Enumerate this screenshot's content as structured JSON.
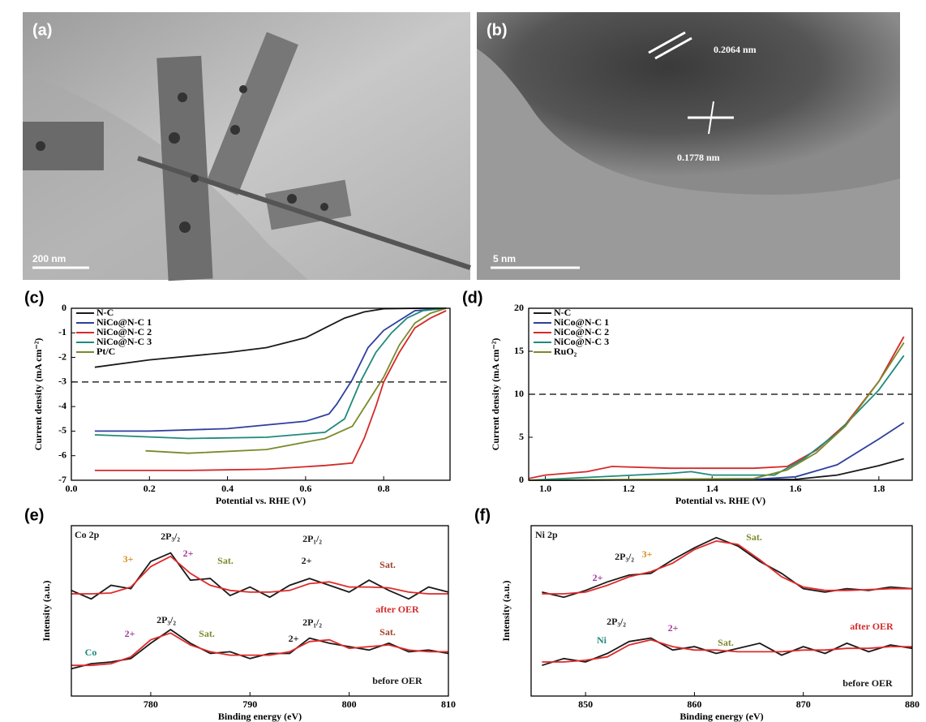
{
  "images": [
    {
      "label": "(a)",
      "scale_bar": "200 nm"
    },
    {
      "label": "(b)",
      "scale_bar": "5 nm",
      "annotations": [
        "0.2064 nm",
        "0.1778 nm"
      ]
    }
  ],
  "chart_data": [
    {
      "type": "line",
      "panel_label": "(c)",
      "x_label": "Potential vs. RHE (V)",
      "y_label": "Current density (mA cm⁻²)",
      "xlim": [
        0,
        0.97
      ],
      "ylim": [
        -7,
        0
      ],
      "xticks": [
        {
          "value": 0,
          "label": "0.0"
        },
        0.2,
        0.4,
        0.6,
        0.8
      ],
      "yticks": [
        -7,
        -6,
        -5,
        -4,
        -3,
        -2,
        -1,
        0
      ],
      "legend": "upper left",
      "ref_line": {
        "y": -3,
        "style": "dashed"
      },
      "series": [
        {
          "name": "N-C",
          "color": "#1a1a1a",
          "x": [
            0.06,
            0.2,
            0.4,
            0.5,
            0.6,
            0.65,
            0.7,
            0.75,
            0.8,
            0.9,
            0.96
          ],
          "values": [
            -2.4,
            -2.1,
            -1.8,
            -1.6,
            -1.2,
            -0.8,
            -0.4,
            -0.15,
            -0.02,
            0,
            0
          ]
        },
        {
          "name": "NiCo@N-C 1",
          "color": "#2e3f9e",
          "x": [
            0.06,
            0.2,
            0.4,
            0.6,
            0.66,
            0.68,
            0.72,
            0.76,
            0.8,
            0.84,
            0.88,
            0.96
          ],
          "values": [
            -5.0,
            -5.0,
            -4.9,
            -4.6,
            -4.3,
            -3.9,
            -2.9,
            -1.6,
            -0.9,
            -0.5,
            -0.1,
            0
          ]
        },
        {
          "name": "NiCo@N-C 2",
          "color": "#d42a2a",
          "x": [
            0.06,
            0.3,
            0.5,
            0.65,
            0.72,
            0.75,
            0.78,
            0.8,
            0.84,
            0.88,
            0.92,
            0.96
          ],
          "values": [
            -6.6,
            -6.6,
            -6.55,
            -6.4,
            -6.3,
            -5.3,
            -4.0,
            -3.0,
            -1.8,
            -0.8,
            -0.4,
            -0.1
          ]
        },
        {
          "name": "NiCo@N-C 3",
          "color": "#1f8a7a",
          "x": [
            0.06,
            0.3,
            0.5,
            0.65,
            0.7,
            0.74,
            0.78,
            0.82,
            0.86,
            0.9,
            0.96
          ],
          "values": [
            -5.15,
            -5.3,
            -5.25,
            -5.05,
            -4.5,
            -3.0,
            -1.8,
            -1.0,
            -0.4,
            -0.1,
            0
          ]
        },
        {
          "name": "Pt/C",
          "color": "#7a8a2a",
          "x": [
            0.19,
            0.3,
            0.5,
            0.65,
            0.72,
            0.76,
            0.8,
            0.84,
            0.88,
            0.92,
            0.96
          ],
          "values": [
            -5.8,
            -5.9,
            -5.75,
            -5.3,
            -4.8,
            -3.8,
            -2.8,
            -1.5,
            -0.6,
            -0.2,
            0
          ]
        }
      ]
    },
    {
      "type": "line",
      "panel_label": "(d)",
      "x_label": "Potential vs. RHE (V)",
      "y_label": "Current density (mA cm⁻²)",
      "xlim": [
        0.96,
        1.88
      ],
      "ylim": [
        0,
        20
      ],
      "xticks": [
        {
          "value": 1,
          "label": "1.0"
        },
        1.2,
        1.4,
        1.6,
        1.8
      ],
      "yticks": [
        0,
        5,
        10,
        15,
        20
      ],
      "legend": "upper left",
      "ref_line": {
        "y": 10,
        "style": "dashed"
      },
      "series": [
        {
          "name": "N-C",
          "color": "#1a1a1a",
          "x": [
            0.96,
            1.6,
            1.7,
            1.8,
            1.86
          ],
          "values": [
            0,
            0.1,
            0.6,
            1.7,
            2.5
          ]
        },
        {
          "name": "NiCo@N-C 1",
          "color": "#2e3f9e",
          "x": [
            0.96,
            1.5,
            1.6,
            1.7,
            1.8,
            1.86
          ],
          "values": [
            0,
            0.1,
            0.4,
            1.8,
            4.8,
            6.7
          ]
        },
        {
          "name": "NiCo@N-C 2",
          "color": "#d42a2a",
          "x": [
            0.96,
            1.0,
            1.1,
            1.16,
            1.3,
            1.5,
            1.58,
            1.65,
            1.72,
            1.8,
            1.86
          ],
          "values": [
            0.2,
            0.6,
            1.0,
            1.6,
            1.4,
            1.4,
            1.6,
            3.5,
            6.5,
            11.5,
            16.7
          ]
        },
        {
          "name": "NiCo@N-C 3",
          "color": "#1f8a7a",
          "x": [
            0.96,
            1.3,
            1.35,
            1.4,
            1.55,
            1.62,
            1.7,
            1.8,
            1.86
          ],
          "values": [
            0,
            0.8,
            1.0,
            0.6,
            0.6,
            2.5,
            5.5,
            10.5,
            14.5
          ]
        },
        {
          "name": "RuO₂",
          "color": "#7a8a2a",
          "x": [
            0.96,
            1.5,
            1.58,
            1.65,
            1.72,
            1.8,
            1.86
          ],
          "values": [
            0,
            0.2,
            1.2,
            3.2,
            6.3,
            11.5,
            16
          ]
        }
      ]
    },
    {
      "type": "line",
      "panel_label": "(e)",
      "x_label": "Binding energy (eV)",
      "y_label": "Intensity (a.u.)",
      "xlim": [
        772,
        810
      ],
      "ylim": [
        0,
        10
      ],
      "xticks": [
        780,
        790,
        800,
        810
      ],
      "x": [
        772,
        774,
        776,
        778,
        780,
        782,
        784,
        786,
        788,
        790,
        792,
        794,
        796,
        798,
        800,
        802,
        804,
        806,
        808,
        810
      ],
      "series": [
        {
          "color": "#1a1a1a",
          "values": [
            6.2,
            5.7,
            6.5,
            6.3,
            7.9,
            8.4,
            6.8,
            6.9,
            5.9,
            6.4,
            5.8,
            6.5,
            6.9,
            6.5,
            6.1,
            6.8,
            6.2,
            5.7,
            6.4,
            6.1
          ]
        },
        {
          "color": "#e02a2a",
          "values": [
            6.0,
            6.0,
            6.05,
            6.4,
            7.6,
            8.2,
            7.2,
            6.5,
            6.2,
            6.1,
            6.1,
            6.2,
            6.6,
            6.7,
            6.4,
            6.4,
            6.35,
            6.1,
            6.0,
            6.0
          ]
        },
        {
          "color": "#1a1a1a",
          "values": [
            1.6,
            1.9,
            2.0,
            2.2,
            3.1,
            3.9,
            3.1,
            2.5,
            2.6,
            2.2,
            2.5,
            2.5,
            3.4,
            3.1,
            2.9,
            2.7,
            3.1,
            2.6,
            2.7,
            2.5
          ]
        },
        {
          "color": "#e02a2a",
          "values": [
            1.8,
            1.8,
            1.9,
            2.3,
            3.3,
            3.7,
            3.0,
            2.6,
            2.4,
            2.4,
            2.4,
            2.6,
            3.2,
            3.3,
            2.8,
            2.9,
            3.0,
            2.7,
            2.6,
            2.6
          ]
        }
      ],
      "annotations": [
        {
          "text": "Co 2p",
          "color": "#1a1a1a"
        },
        {
          "text": "2P₃/₂",
          "color": "#1a1a1a"
        },
        {
          "text": "3+",
          "color": "#d98a1a"
        },
        {
          "text": "2+",
          "color": "#a03a9a"
        },
        {
          "text": "Sat.",
          "color": "#7a8a2a"
        },
        {
          "text": "2P₁/₂",
          "color": "#1a1a1a"
        },
        {
          "text": "2+",
          "color": "#1a1a1a"
        },
        {
          "text": "Sat.",
          "color": "#a0402a"
        },
        {
          "text": "after OER",
          "color": "#d42a2a"
        },
        {
          "text": "2P₃/₂",
          "color": "#1a1a1a"
        },
        {
          "text": "2+",
          "color": "#a03a9a"
        },
        {
          "text": "Sat.",
          "color": "#7a8a2a"
        },
        {
          "text": "2P₁/₂",
          "color": "#1a1a1a"
        },
        {
          "text": "2+",
          "color": "#1a1a1a"
        },
        {
          "text": "Sat.",
          "color": "#a0402a"
        },
        {
          "text": "Co",
          "color": "#1f8a7a"
        },
        {
          "text": "before OER",
          "color": "#1a1a1a"
        }
      ]
    },
    {
      "type": "line",
      "panel_label": "(f)",
      "x_label": "Binding energy (eV)",
      "y_label": "Intensity (a.u.)",
      "xlim": [
        845,
        880
      ],
      "ylim": [
        0,
        10
      ],
      "xticks": [
        850,
        860,
        870,
        880
      ],
      "x": [
        846,
        848,
        850,
        852,
        854,
        856,
        858,
        860,
        862,
        864,
        866,
        868,
        870,
        872,
        874,
        876,
        878,
        880
      ],
      "series": [
        {
          "color": "#1a1a1a",
          "values": [
            6.1,
            5.8,
            6.2,
            6.7,
            7.1,
            7.2,
            8.0,
            8.7,
            9.3,
            8.8,
            7.9,
            7.2,
            6.3,
            6.1,
            6.3,
            6.2,
            6.4,
            6.3
          ]
        },
        {
          "color": "#e02a2a",
          "values": [
            6.0,
            6.0,
            6.1,
            6.5,
            7.0,
            7.3,
            7.8,
            8.6,
            9.1,
            8.9,
            8.0,
            7.0,
            6.4,
            6.2,
            6.2,
            6.25,
            6.3,
            6.3
          ]
        },
        {
          "color": "#1a1a1a",
          "values": [
            1.8,
            2.2,
            2.0,
            2.5,
            3.2,
            3.4,
            2.7,
            2.9,
            2.5,
            2.8,
            3.1,
            2.4,
            2.9,
            2.5,
            3.1,
            2.6,
            3.0,
            2.8
          ]
        },
        {
          "color": "#e02a2a",
          "values": [
            2.0,
            2.0,
            2.1,
            2.3,
            3.0,
            3.3,
            2.9,
            2.7,
            2.7,
            2.6,
            2.6,
            2.6,
            2.7,
            2.7,
            2.8,
            2.8,
            2.9,
            2.9
          ]
        }
      ],
      "annotations": [
        {
          "text": "Ni 2p",
          "color": "#1a1a1a"
        },
        {
          "text": "2P₃/₂",
          "color": "#1a1a1a"
        },
        {
          "text": "3+",
          "color": "#d98a1a"
        },
        {
          "text": "Sat.",
          "color": "#7a8a2a"
        },
        {
          "text": "2+",
          "color": "#a03a9a"
        },
        {
          "text": "after OER",
          "color": "#d42a2a"
        },
        {
          "text": "2P₃/₂",
          "color": "#1a1a1a"
        },
        {
          "text": "2+",
          "color": "#a03a9a"
        },
        {
          "text": "Ni",
          "color": "#1f8a7a"
        },
        {
          "text": "Sat.",
          "color": "#7a8a2a"
        },
        {
          "text": "before OER",
          "color": "#1a1a1a"
        }
      ]
    }
  ]
}
